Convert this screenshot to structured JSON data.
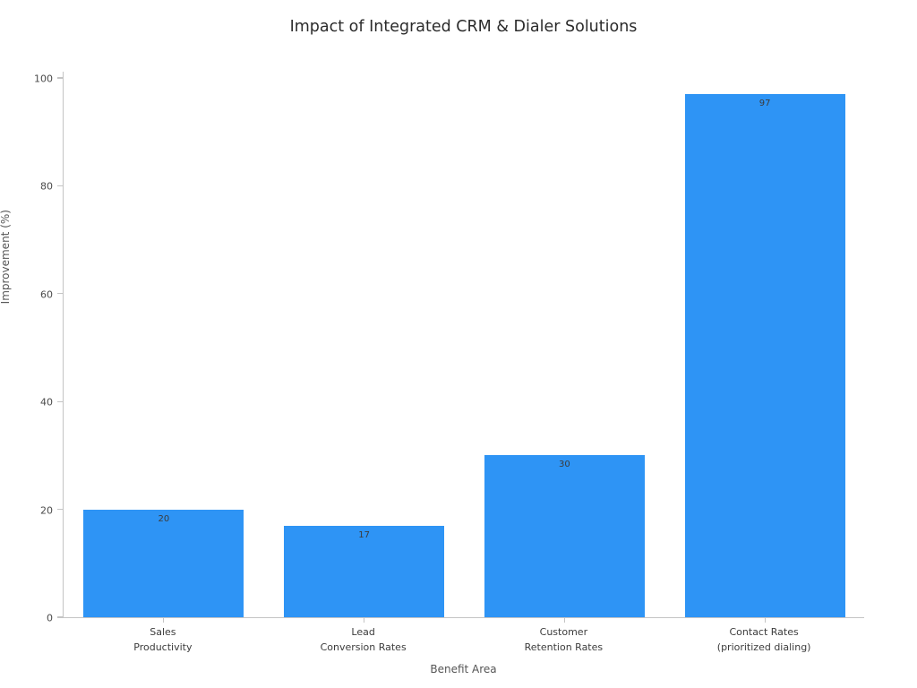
{
  "chart_data": {
    "type": "bar",
    "title": "Impact of Integrated CRM & Dialer Solutions",
    "xlabel": "Benefit Area",
    "ylabel": "Improvement (%)",
    "categories": [
      "Sales\nProductivity",
      "Lead\nConversion Rates",
      "Customer\nRetention Rates",
      "Contact Rates\n(prioritized dialing)"
    ],
    "values": [
      20,
      17,
      30,
      97
    ],
    "value_labels": [
      "20",
      "17",
      "30",
      "97"
    ],
    "ylim": [
      0,
      100
    ],
    "yticks": [
      0,
      20,
      40,
      60,
      80,
      100
    ],
    "grid": false,
    "legend": null,
    "bar_color": "#2e94f5",
    "bar_width_fraction": 0.8,
    "spine_color": "#c4c4c4",
    "value_label_color": "#3b3b3b"
  }
}
